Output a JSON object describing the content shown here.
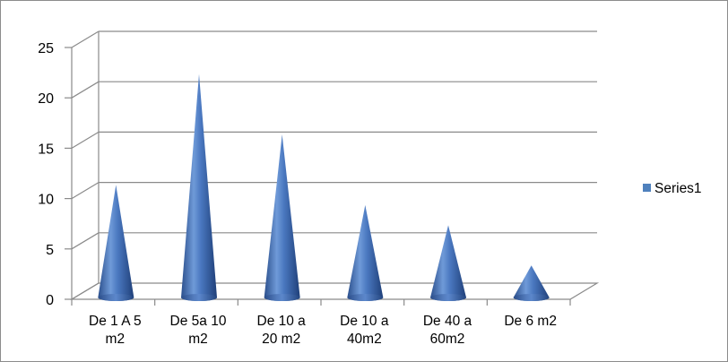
{
  "chart_data": {
    "type": "bar",
    "subtype": "3d-cone",
    "categories": [
      [
        "De 1 A 5",
        "m2"
      ],
      [
        "De 5a 10",
        "m2"
      ],
      [
        "De 10 a",
        "20 m2"
      ],
      [
        "De 10 a",
        "40m2"
      ],
      [
        "De 40 a",
        "60m2"
      ],
      [
        "De 6 m2"
      ]
    ],
    "series": [
      {
        "name": "Series1",
        "values": [
          11,
          22,
          16,
          9,
          7,
          3
        ]
      }
    ],
    "ylim": [
      0,
      25
    ],
    "yticks": [
      0,
      5,
      10,
      15,
      20,
      25
    ],
    "grid": true,
    "legend": "right",
    "colors": {
      "series": "#4a78c0",
      "grid": "#8a8a8a",
      "legend_swatch": "#4f81bd"
    }
  }
}
